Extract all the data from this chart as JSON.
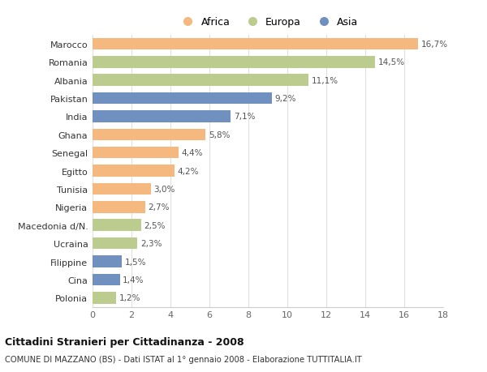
{
  "countries": [
    "Marocco",
    "Romania",
    "Albania",
    "Pakistan",
    "India",
    "Ghana",
    "Senegal",
    "Egitto",
    "Tunisia",
    "Nigeria",
    "Macedonia d/N.",
    "Ucraina",
    "Filippine",
    "Cina",
    "Polonia"
  ],
  "values": [
    16.7,
    14.5,
    11.1,
    9.2,
    7.1,
    5.8,
    4.4,
    4.2,
    3.0,
    2.7,
    2.5,
    2.3,
    1.5,
    1.4,
    1.2
  ],
  "continents": [
    "Africa",
    "Europa",
    "Europa",
    "Asia",
    "Asia",
    "Africa",
    "Africa",
    "Africa",
    "Africa",
    "Africa",
    "Europa",
    "Europa",
    "Asia",
    "Asia",
    "Europa"
  ],
  "colors": {
    "Africa": "#F5B97F",
    "Europa": "#BBCC8E",
    "Asia": "#7090C0"
  },
  "title": "Cittadini Stranieri per Cittadinanza - 2008",
  "subtitle": "COMUNE DI MAZZANO (BS) - Dati ISTAT al 1° gennaio 2008 - Elaborazione TUTTITALIA.IT",
  "xlim": [
    0,
    18
  ],
  "xticks": [
    0,
    2,
    4,
    6,
    8,
    10,
    12,
    14,
    16,
    18
  ],
  "background_color": "#ffffff",
  "grid_color": "#e0e0e0",
  "bar_height": 0.65
}
